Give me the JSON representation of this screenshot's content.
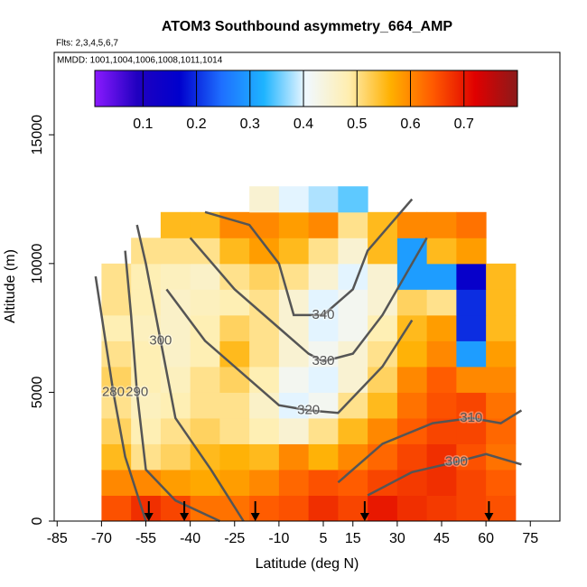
{
  "chart_data": {
    "type": "heatmap",
    "title": "ATOM3 Southbound asymmetry_664_AMP",
    "subtitle": "Flts: 2,3,4,5,6,7",
    "annotation": "MMDD: 1001,1004,1006,1008,1011,1014",
    "xlabel": "Latitude (deg N)",
    "ylabel": "Altitude (m)",
    "xlim": [
      -86,
      85
    ],
    "ylim": [
      0,
      18200
    ],
    "xticks": [
      -85,
      -70,
      -55,
      -40,
      -25,
      -10,
      5,
      15,
      30,
      45,
      60,
      75
    ],
    "yticks": [
      0,
      5000,
      10000,
      15000
    ],
    "lat_bins": [
      -70,
      -60,
      -50,
      -40,
      -30,
      -20,
      -10,
      0,
      10,
      20,
      30,
      40,
      50,
      60,
      70
    ],
    "alt_bins": [
      0,
      1000,
      2000,
      3000,
      4000,
      5000,
      6000,
      7000,
      8000,
      9000,
      10000,
      11000,
      12000,
      13000
    ],
    "values": [
      [
        0.65,
        0.68,
        0.66,
        0.62,
        0.62,
        0.64,
        0.65,
        0.68,
        0.66,
        0.7,
        0.68,
        0.67,
        0.66,
        0.65
      ],
      [
        0.6,
        0.6,
        0.58,
        0.57,
        0.58,
        0.6,
        0.63,
        0.65,
        0.64,
        0.66,
        0.67,
        0.68,
        0.66,
        0.64
      ],
      [
        0.55,
        0.5,
        0.52,
        0.55,
        0.56,
        0.55,
        0.6,
        0.56,
        0.6,
        0.63,
        0.66,
        0.68,
        0.65,
        0.62
      ],
      [
        0.52,
        0.48,
        0.5,
        0.52,
        0.5,
        0.48,
        0.45,
        0.5,
        0.55,
        0.6,
        0.64,
        0.66,
        0.66,
        0.63
      ],
      [
        0.5,
        0.47,
        0.48,
        0.5,
        0.5,
        0.46,
        0.4,
        0.42,
        0.5,
        0.55,
        0.62,
        0.65,
        0.66,
        0.62
      ],
      [
        0.52,
        0.48,
        0.47,
        0.5,
        0.52,
        0.48,
        0.42,
        0.4,
        0.45,
        0.52,
        0.6,
        0.64,
        0.6,
        0.6
      ],
      [
        0.5,
        0.48,
        0.46,
        0.48,
        0.55,
        0.5,
        0.45,
        0.42,
        0.45,
        0.5,
        0.56,
        0.6,
        0.3,
        0.58
      ],
      [
        0.48,
        0.47,
        0.46,
        0.48,
        0.52,
        0.5,
        0.45,
        0.4,
        0.42,
        0.48,
        0.55,
        0.58,
        0.2,
        0.55
      ],
      [
        0.5,
        0.48,
        0.46,
        0.47,
        0.48,
        0.5,
        0.45,
        0.4,
        0.42,
        0.45,
        0.52,
        0.5,
        0.2,
        0.55
      ],
      [
        0.5,
        0.48,
        0.47,
        0.46,
        0.5,
        0.52,
        0.5,
        0.45,
        0.4,
        0.45,
        0.3,
        0.3,
        0.15,
        0.55
      ],
      [
        null,
        0.5,
        0.5,
        0.5,
        0.55,
        0.58,
        0.55,
        0.5,
        0.45,
        0.55,
        0.3,
        0.55,
        0.58,
        null
      ],
      [
        null,
        null,
        0.55,
        0.55,
        0.6,
        0.6,
        0.58,
        0.6,
        0.5,
        0.55,
        0.6,
        0.6,
        0.62,
        null
      ],
      [
        null,
        null,
        null,
        null,
        null,
        0.45,
        0.4,
        0.38,
        0.35,
        null,
        null,
        null,
        null,
        null
      ]
    ],
    "clim": [
      0.01,
      0.8
    ],
    "colorbar_ticks": [
      0.1,
      0.2,
      0.3,
      0.4,
      0.5,
      0.6,
      0.7
    ],
    "colorscale": [
      "#8b1aff",
      "#2000c0",
      "#0000cd",
      "#1e6fff",
      "#1eb4ff",
      "#f0f8ff",
      "#ffeeb0",
      "#ffb000",
      "#ff5a00",
      "#e00000",
      "#8b1a1a"
    ],
    "contour_color": "#555555",
    "contours": [
      {
        "level": 280,
        "lat": [
          -55,
          -62,
          -66,
          -70,
          -72
        ],
        "alt": [
          0,
          2500,
          5000,
          8000,
          9500
        ]
      },
      {
        "level": 290,
        "lat": [
          -30,
          -45,
          -55,
          -58,
          -60,
          -62
        ],
        "alt": [
          0,
          800,
          2000,
          5000,
          8000,
          10500
        ]
      },
      {
        "level": 300,
        "lat": [
          -22,
          -33,
          -45,
          -50,
          -55,
          -58
        ],
        "alt": [
          0,
          2000,
          4000,
          7000,
          10000,
          11500
        ]
      },
      {
        "level": 300,
        "lat": [
          20,
          35,
          50,
          60,
          72
        ],
        "alt": [
          1000,
          1900,
          2300,
          2600,
          2200
        ]
      },
      {
        "level": 310,
        "lat": [
          10,
          25,
          42,
          55,
          65,
          72
        ],
        "alt": [
          1500,
          3000,
          3800,
          4000,
          3800,
          4300
        ]
      },
      {
        "level": 320,
        "lat": [
          -48,
          -35,
          -20,
          -10,
          0,
          10,
          15,
          25,
          35
        ],
        "alt": [
          9000,
          7000,
          5500,
          4500,
          4300,
          4200,
          4800,
          6000,
          7800
        ]
      },
      {
        "level": 330,
        "lat": [
          -40,
          -25,
          -10,
          0,
          5,
          15,
          25,
          40
        ],
        "alt": [
          11000,
          9000,
          7500,
          6500,
          6200,
          6500,
          8000,
          11000
        ]
      },
      {
        "level": 340,
        "lat": [
          -35,
          -20,
          -10,
          -5,
          5,
          15,
          20,
          35
        ],
        "alt": [
          12000,
          11500,
          10000,
          8000,
          8000,
          9000,
          10500,
          12500
        ]
      }
    ],
    "arrow_lats": [
      -54,
      -42,
      -18,
      19,
      61
    ]
  }
}
